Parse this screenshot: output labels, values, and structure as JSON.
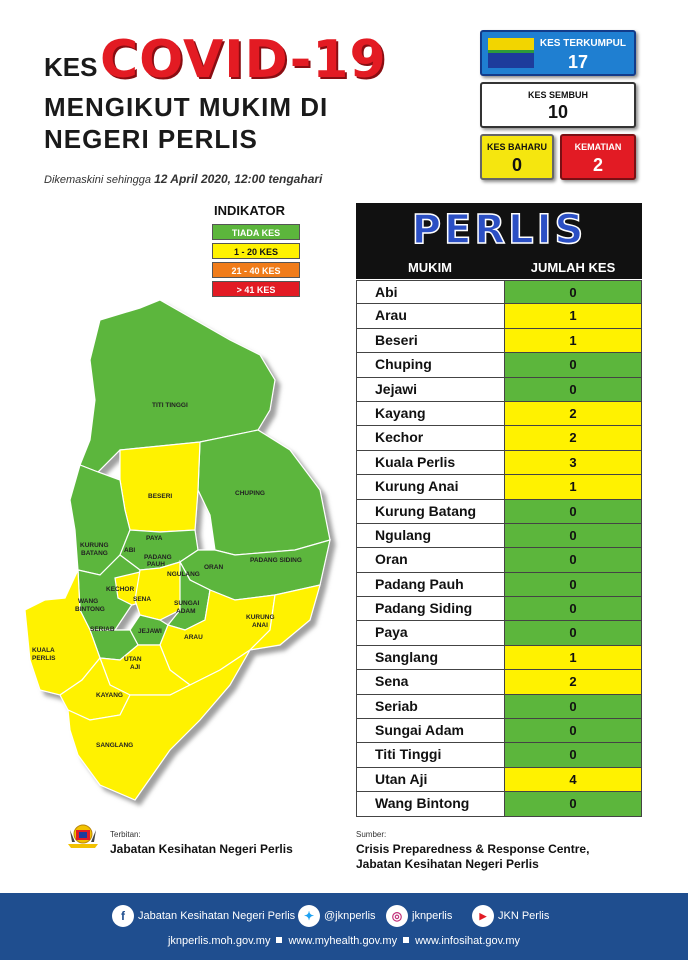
{
  "header": {
    "kes": "KES",
    "covid": "COVID-19",
    "subtitle_line1": "MENGIKUT MUKIM DI",
    "subtitle_line2": "NEGERI PERLIS",
    "updated_prefix": "Dikemaskini sehingga",
    "updated_date": "12 April 2020, 12:00 tengahari"
  },
  "stats": {
    "total_label": "KES TERKUMPUL",
    "total_value": "17",
    "recovered_label": "KES SEMBUH",
    "recovered_value": "10",
    "new_label": "KES BAHARU",
    "new_value": "0",
    "deaths_label": "KEMATIAN",
    "deaths_value": "2"
  },
  "legend": {
    "title": "INDIKATOR",
    "items": [
      {
        "label": "TIADA KES",
        "color": "#5cb63c"
      },
      {
        "label": "1 - 20 KES",
        "color": "#fff200"
      },
      {
        "label": "21 - 40 KES",
        "color": "#f07c1a"
      },
      {
        "label": "> 41 KES",
        "color": "#e21b24"
      }
    ]
  },
  "map": {
    "labels": {
      "titi_tinggi": "TITI TINGGI",
      "beseri": "BESERI",
      "chuping": "CHUPING",
      "kurung_batang_1": "KURUNG",
      "kurung_batang_2": "BATANG",
      "abi": "ABI",
      "paya": "PAYA",
      "padang_pauh_1": "PADANG",
      "padang_pauh_2": "PAUH",
      "ngulang": "NGULANG",
      "oran": "ORAN",
      "padang_siding": "PADANG SIDING",
      "kechor": "KECHOR",
      "wang_bintong_1": "WANG",
      "wang_bintong_2": "BINTONG",
      "sena": "SENA",
      "sungai_adam_1": "SUNGAI",
      "sungai_adam_2": "ADAM",
      "seriab": "SERIAB",
      "jejawi": "JEJAWI",
      "arau": "ARAU",
      "kurung_anai_1": "KURUNG",
      "kurung_anai_2": "ANAI",
      "kuala_perlis_1": "KUALA",
      "kuala_perlis_2": "PERLIS",
      "utan_aji_1": "UTAN",
      "utan_aji_2": "AJI",
      "kayang": "KAYANG",
      "sanglang": "SANGLANG"
    },
    "colors": {
      "green": "#5cb63c",
      "yellow": "#fff200"
    }
  },
  "table": {
    "title": "PERLIS",
    "col_mukim": "MUKIM",
    "col_jumlah": "JUMLAH KES",
    "rows": [
      {
        "mukim": "Abi",
        "kes": "0",
        "level": "green"
      },
      {
        "mukim": "Arau",
        "kes": "1",
        "level": "yellow"
      },
      {
        "mukim": "Beseri",
        "kes": "1",
        "level": "yellow"
      },
      {
        "mukim": "Chuping",
        "kes": "0",
        "level": "green"
      },
      {
        "mukim": "Jejawi",
        "kes": "0",
        "level": "green"
      },
      {
        "mukim": "Kayang",
        "kes": "2",
        "level": "yellow"
      },
      {
        "mukim": "Kechor",
        "kes": "2",
        "level": "yellow"
      },
      {
        "mukim": "Kuala Perlis",
        "kes": "3",
        "level": "yellow"
      },
      {
        "mukim": "Kurung Anai",
        "kes": "1",
        "level": "yellow"
      },
      {
        "mukim": "Kurung Batang",
        "kes": "0",
        "level": "green"
      },
      {
        "mukim": "Ngulang",
        "kes": "0",
        "level": "green"
      },
      {
        "mukim": "Oran",
        "kes": "0",
        "level": "green"
      },
      {
        "mukim": "Padang Pauh",
        "kes": "0",
        "level": "green"
      },
      {
        "mukim": "Padang Siding",
        "kes": "0",
        "level": "green"
      },
      {
        "mukim": "Paya",
        "kes": "0",
        "level": "green"
      },
      {
        "mukim": "Sanglang",
        "kes": "1",
        "level": "yellow"
      },
      {
        "mukim": "Sena",
        "kes": "2",
        "level": "yellow"
      },
      {
        "mukim": "Seriab",
        "kes": "0",
        "level": "green"
      },
      {
        "mukim": "Sungai Adam",
        "kes": "0",
        "level": "green"
      },
      {
        "mukim": "Titi Tinggi",
        "kes": "0",
        "level": "green"
      },
      {
        "mukim": "Utan Aji",
        "kes": "4",
        "level": "yellow"
      },
      {
        "mukim": "Wang Bintong",
        "kes": "0",
        "level": "green"
      }
    ]
  },
  "credits": {
    "terbitan_label": "Terbitan:",
    "terbitan_value": "Jabatan Kesihatan Negeri Perlis",
    "sumber_label": "Sumber:",
    "sumber_line1": "Crisis Preparedness & Response Centre,",
    "sumber_line2": "Jabatan Kesihatan Negeri Perlis"
  },
  "footer": {
    "facebook": "Jabatan Kesihatan Negeri Perlis",
    "twitter": "@jknperlis",
    "instagram": "jknperlis",
    "youtube": "JKN Perlis",
    "link1": "jknperlis.moh.gov.my",
    "link2": "www.myhealth.gov.my",
    "link3": "www.infosihat.gov.my",
    "icons": [
      "facebook-icon",
      "twitter-icon",
      "instagram-icon",
      "youtube-icon"
    ]
  }
}
